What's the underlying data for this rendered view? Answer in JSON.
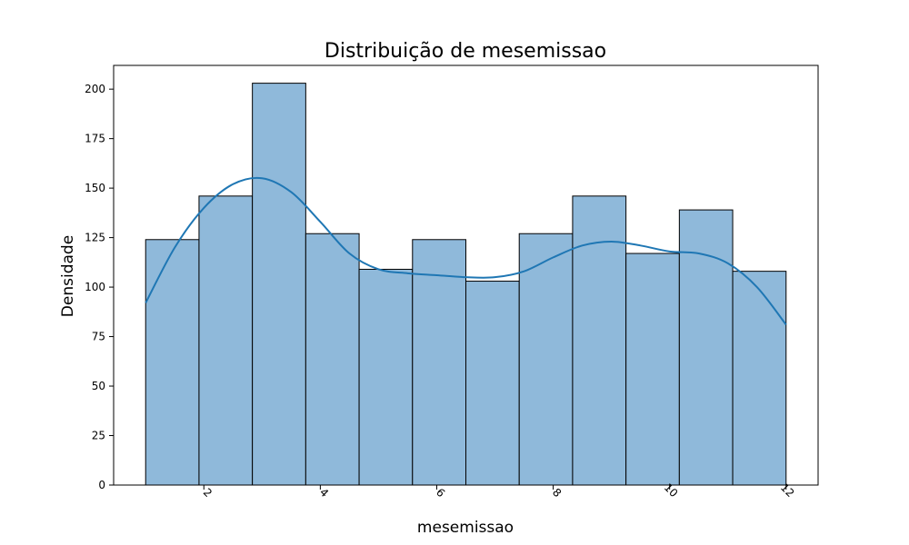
{
  "chart_data": {
    "type": "bar",
    "subtype": "histogram-with-kde",
    "title": "Distribuição de mesemissao",
    "xlabel": "mesemissao",
    "ylabel": "Densidade",
    "xlim": [
      0.45,
      12.55
    ],
    "ylim": [
      0,
      212
    ],
    "bin_edges": [
      1.0,
      1.9167,
      2.8333,
      3.75,
      4.6667,
      5.5833,
      6.5,
      7.4167,
      8.3333,
      9.25,
      10.1667,
      11.0833,
      12.0
    ],
    "values": [
      124,
      146,
      203,
      127,
      109,
      124,
      103,
      127,
      146,
      117,
      139,
      108
    ],
    "x_ticks": [
      2,
      4,
      6,
      8,
      10,
      12
    ],
    "x_tick_labels": [
      "2",
      "4",
      "6",
      "8",
      "10",
      "12"
    ],
    "x_tick_rotation_deg": 45,
    "y_ticks": [
      0,
      25,
      50,
      75,
      100,
      125,
      150,
      175,
      200
    ],
    "y_tick_labels": [
      "0",
      "25",
      "50",
      "75",
      "100",
      "125",
      "150",
      "175",
      "200"
    ],
    "kde": {
      "x": [
        1.0,
        1.5,
        2.0,
        2.5,
        3.0,
        3.5,
        4.0,
        4.5,
        5.0,
        5.5,
        6.0,
        6.5,
        7.0,
        7.5,
        8.0,
        8.5,
        9.0,
        9.5,
        10.0,
        10.5,
        11.0,
        11.5,
        12.0
      ],
      "y": [
        92,
        120,
        140,
        152,
        155,
        148,
        133,
        117,
        109,
        107,
        106,
        105,
        105,
        108,
        115,
        121,
        123,
        121,
        118,
        117,
        112,
        100,
        81
      ]
    },
    "grid": false,
    "legend": "none",
    "colors": {
      "bar_fill": "#8fb9da",
      "bar_edge": "#000000",
      "kde_line": "#1f77b4"
    }
  }
}
